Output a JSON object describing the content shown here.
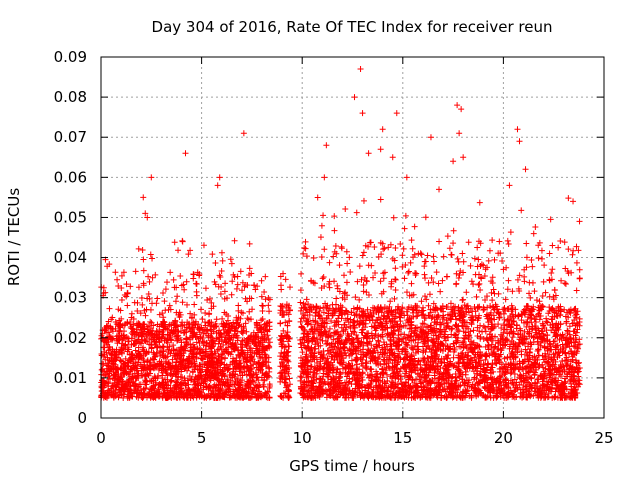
{
  "chart_data": {
    "type": "scatter",
    "title": "Day 304 of 2016, Rate Of TEC Index for receiver reun",
    "xlabel": "GPS time / hours",
    "ylabel": "ROTI / TECUs",
    "xlim": [
      0,
      25
    ],
    "ylim": [
      0,
      0.09
    ],
    "x_ticks": [
      0,
      5,
      10,
      15,
      20,
      25
    ],
    "x_tick_labels": [
      "0",
      "5",
      "10",
      "15",
      "20",
      "25"
    ],
    "y_ticks": [
      0,
      0.01,
      0.02,
      0.03,
      0.04,
      0.05,
      0.06,
      0.07,
      0.08,
      0.09
    ],
    "y_tick_labels": [
      "0",
      "0.01",
      "0.02",
      "0.03",
      "0.04",
      "0.05",
      "0.06",
      "0.07",
      "0.08",
      "0.09"
    ],
    "grid": true,
    "marker": "+",
    "marker_color": "#ff0000",
    "segments": [
      {
        "start": 0.0,
        "end": 8.4,
        "dense_max": 0.024,
        "spike_max": 0.045
      },
      {
        "start": 8.9,
        "end": 9.4,
        "dense_max": 0.028,
        "spike_max": 0.046
      },
      {
        "start": 9.9,
        "end": 23.8,
        "dense_max": 0.028,
        "spike_max": 0.055
      }
    ],
    "notable_points": [
      {
        "x": 12.9,
        "y": 0.087
      },
      {
        "x": 12.6,
        "y": 0.08
      },
      {
        "x": 13.0,
        "y": 0.076
      },
      {
        "x": 17.7,
        "y": 0.078
      },
      {
        "x": 17.9,
        "y": 0.077
      },
      {
        "x": 17.8,
        "y": 0.071
      },
      {
        "x": 14.7,
        "y": 0.076
      },
      {
        "x": 14.0,
        "y": 0.072
      },
      {
        "x": 13.9,
        "y": 0.067
      },
      {
        "x": 16.4,
        "y": 0.07
      },
      {
        "x": 20.7,
        "y": 0.072
      },
      {
        "x": 20.8,
        "y": 0.069
      },
      {
        "x": 7.1,
        "y": 0.071
      },
      {
        "x": 11.2,
        "y": 0.068
      },
      {
        "x": 4.2,
        "y": 0.066
      },
      {
        "x": 2.5,
        "y": 0.06
      },
      {
        "x": 5.9,
        "y": 0.06
      },
      {
        "x": 5.8,
        "y": 0.058
      },
      {
        "x": 11.1,
        "y": 0.06
      },
      {
        "x": 20.3,
        "y": 0.058
      },
      {
        "x": 21.1,
        "y": 0.062
      },
      {
        "x": 13.3,
        "y": 0.066
      },
      {
        "x": 14.5,
        "y": 0.065
      },
      {
        "x": 16.8,
        "y": 0.057
      },
      {
        "x": 17.5,
        "y": 0.064
      },
      {
        "x": 2.1,
        "y": 0.055
      },
      {
        "x": 2.2,
        "y": 0.051
      },
      {
        "x": 2.3,
        "y": 0.05
      },
      {
        "x": 18.0,
        "y": 0.065
      },
      {
        "x": 15.2,
        "y": 0.06
      }
    ]
  }
}
